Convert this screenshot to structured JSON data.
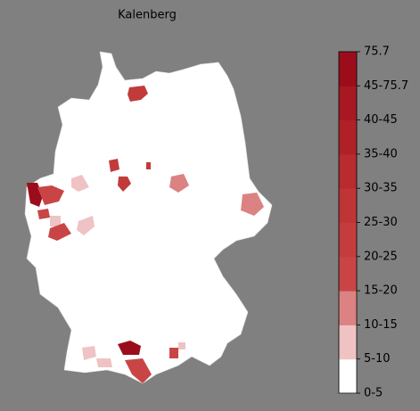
{
  "title": "Kalenberg",
  "colorbar": {
    "ticks": [
      "0-5",
      "5-10",
      "10-15",
      "15-20",
      "20-25",
      "25-30",
      "30-35",
      "35-40",
      "40-45",
      "45-75.7",
      "75.7"
    ],
    "colors": [
      "#ffffff",
      "#efc3c3",
      "#dc8282",
      "#c94545",
      "#c43d3d",
      "#bf3535",
      "#b82b2f",
      "#b02127",
      "#a81822",
      "#9c0d1c"
    ]
  }
}
